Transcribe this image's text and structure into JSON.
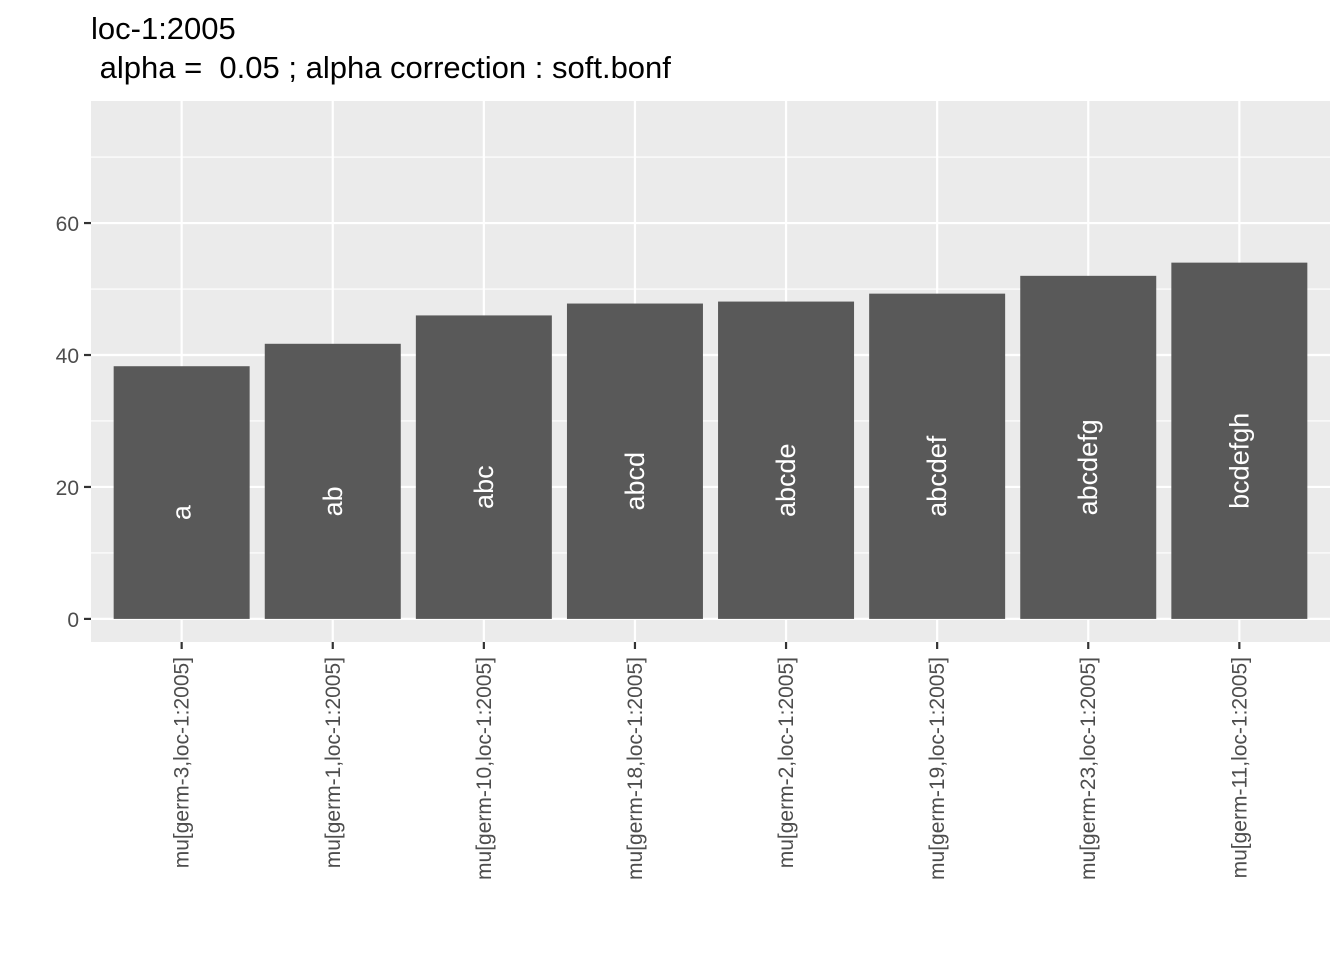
{
  "chart_data": {
    "type": "bar",
    "title": "loc-1:2005",
    "subtitle": " alpha =  0.05 ; alpha correction : soft.bonf",
    "xlabel": "",
    "ylabel": "",
    "categories": [
      "mu[germ-3,loc-1:2005]",
      "mu[germ-1,loc-1:2005]",
      "mu[germ-10,loc-1:2005]",
      "mu[germ-18,loc-1:2005]",
      "mu[germ-2,loc-1:2005]",
      "mu[germ-19,loc-1:2005]",
      "mu[germ-23,loc-1:2005]",
      "mu[germ-11,loc-1:2005]"
    ],
    "values": [
      38.3,
      41.7,
      46.0,
      47.8,
      48.1,
      49.3,
      52.0,
      54.0
    ],
    "group_labels": [
      "a",
      "ab",
      "abc",
      "abcd",
      "abcde",
      "abcdef",
      "abcdefg",
      "bcdefgh"
    ],
    "ylim": [
      -3.5,
      78.5
    ],
    "yticks": [
      0,
      20,
      40,
      60
    ],
    "grid": true,
    "legend": "none",
    "colors": {
      "bar": "#595959",
      "panel": "#ebebeb",
      "grid": "#ffffff",
      "label": "#ffffff",
      "tick": "#4d4d4d",
      "tick_mark": "#333333",
      "title": "#000000"
    }
  }
}
